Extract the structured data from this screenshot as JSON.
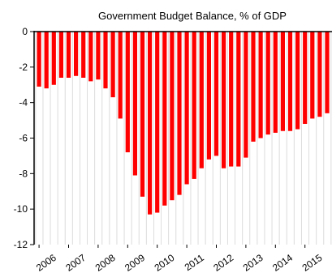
{
  "chart_data": {
    "type": "bar",
    "title": "Government Budget Balance, % of GDP",
    "xlabel": "",
    "ylabel": "",
    "ylim": [
      -12,
      0
    ],
    "yticks": [
      0,
      -2,
      -4,
      -6,
      -8,
      -10,
      -12
    ],
    "year_ticks": [
      "2006",
      "2007",
      "2008",
      "2009",
      "2010",
      "2011",
      "2012",
      "2013",
      "2014",
      "2015"
    ],
    "first_year": 2006,
    "periods_per_year": 4,
    "grid": "vertical",
    "bar_color": "#ff0000",
    "values": [
      -3.1,
      -3.2,
      -3.0,
      -2.6,
      -2.6,
      -2.5,
      -2.6,
      -2.8,
      -2.7,
      -3.2,
      -3.7,
      -4.9,
      -6.8,
      -8.1,
      -9.3,
      -10.3,
      -10.2,
      -9.8,
      -9.5,
      -9.2,
      -8.6,
      -8.3,
      -7.7,
      -7.2,
      -7.0,
      -7.7,
      -7.6,
      -7.6,
      -7.1,
      -6.2,
      -6.0,
      -5.8,
      -5.7,
      -5.6,
      -5.6,
      -5.5,
      -5.2,
      -4.9,
      -4.8,
      -4.6
    ]
  }
}
